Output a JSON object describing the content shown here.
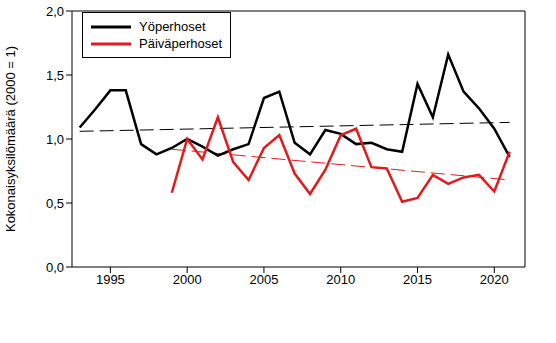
{
  "chart_data": {
    "type": "line",
    "y_label": "Kokonaisyksilömäärä (2000 = 1)",
    "xlim": [
      1992.5,
      2022
    ],
    "xticks": [
      1995,
      2000,
      2005,
      2010,
      2015,
      2020
    ],
    "ylim": [
      0,
      2
    ],
    "yticks": [
      {
        "value": 0,
        "label": "0,0"
      },
      {
        "value": 0.5,
        "label": "0,5"
      },
      {
        "value": 1,
        "label": "1,0"
      },
      {
        "value": 1.5,
        "label": "1,5"
      },
      {
        "value": 2,
        "label": "2,0"
      }
    ],
    "grid": false,
    "legend": "top-left",
    "series": [
      {
        "name": "Yöperhoset",
        "color": "#000000",
        "x": [
          1993,
          1994,
          1995,
          1996,
          1997,
          1998,
          1999,
          2000,
          2001,
          2002,
          2003,
          2004,
          2005,
          2006,
          2007,
          2008,
          2009,
          2010,
          2011,
          2012,
          2013,
          2014,
          2015,
          2016,
          2017,
          2018,
          2019,
          2020,
          2021
        ],
        "values": [
          1.09,
          1.23,
          1.38,
          1.38,
          0.96,
          0.88,
          0.93,
          1.0,
          0.94,
          0.87,
          0.92,
          0.96,
          1.32,
          1.37,
          0.97,
          0.88,
          1.07,
          1.04,
          0.96,
          0.97,
          0.92,
          0.9,
          1.43,
          1.17,
          1.66,
          1.37,
          1.24,
          1.08,
          0.86
        ],
        "trend": {
          "x": [
            1993,
            2021
          ],
          "values": [
            1.06,
            1.13
          ],
          "line_style": "dashed"
        }
      },
      {
        "name": "Päiväperhoset",
        "color": "#e31a1c",
        "x": [
          1999,
          2000,
          2001,
          2002,
          2003,
          2004,
          2005,
          2006,
          2007,
          2008,
          2009,
          2010,
          2011,
          2012,
          2013,
          2014,
          2015,
          2016,
          2017,
          2018,
          2019,
          2020,
          2021
        ],
        "values": [
          0.58,
          1.0,
          0.84,
          1.17,
          0.82,
          0.68,
          0.93,
          1.03,
          0.73,
          0.57,
          0.76,
          1.03,
          1.08,
          0.78,
          0.77,
          0.51,
          0.54,
          0.72,
          0.65,
          0.7,
          0.72,
          0.59,
          0.9
        ],
        "trend": {
          "x": [
            1999,
            2021
          ],
          "values": [
            0.92,
            0.68
          ],
          "line_style": "dashed"
        }
      }
    ]
  }
}
